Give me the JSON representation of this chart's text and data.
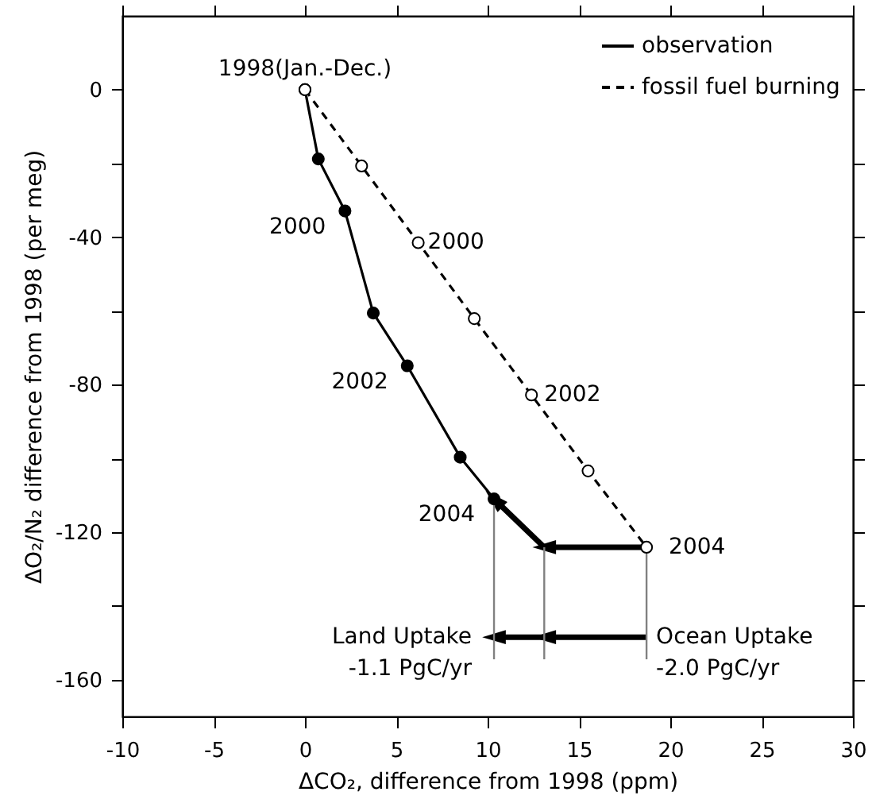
{
  "chart_data": {
    "type": "line",
    "xlabel": "ΔCO₂, difference from 1998 (ppm)",
    "ylabel": "ΔO₂/N₂ difference from 1998 (per meg)",
    "xlim": [
      -10,
      30
    ],
    "xticks": [
      -10,
      -5,
      0,
      5,
      10,
      15,
      20,
      25,
      30
    ],
    "ylim": [
      -170,
      20
    ],
    "yticks": [
      {
        "value": -160,
        "label": "-160"
      },
      {
        "value": -140,
        "label": null
      },
      {
        "value": -120,
        "label": "-120"
      },
      {
        "value": -100,
        "label": null
      },
      {
        "value": -80,
        "label": "-80"
      },
      {
        "value": -60,
        "label": null
      },
      {
        "value": -40,
        "label": "-40"
      },
      {
        "value": -20,
        "label": null
      },
      {
        "value": 0,
        "label": "0"
      }
    ],
    "grid": false,
    "legend": "top right",
    "series": [
      {
        "name": "observation",
        "color": "#000000",
        "line_style": "solid",
        "marker": "circle",
        "x": [
          0,
          0.73,
          2.19,
          3.74,
          5.6,
          8.5,
          10.35
        ],
        "values": [
          0,
          -18.8,
          -32.9,
          -60.6,
          -74.9,
          -99.7,
          -111.0
        ]
      },
      {
        "name": "fossil fuel burning",
        "color": "#000000",
        "line_style": "dashed",
        "marker": "circle",
        "x": [
          0,
          3.1,
          6.2,
          9.27,
          12.4,
          15.5,
          18.7
        ],
        "values": [
          0,
          -20.7,
          -41.5,
          -62.1,
          -82.8,
          -103.4,
          -124.1
        ]
      },
      {
        "color": "#000000",
        "line_style": "solid",
        "marker": "triangle",
        "x": [
          18.7,
          13.1
        ],
        "values": [
          -124.1,
          -124.1
        ]
      },
      {
        "color": "#000000",
        "line_style": "solid",
        "marker": "triangle",
        "x": [
          13.1,
          10.35
        ],
        "values": [
          -124.1,
          -111.0
        ]
      },
      {
        "color": "#000000",
        "line_style": "solid",
        "marker": "triangle",
        "x": [
          18.7,
          13.1
        ],
        "values": [
          -148.5,
          -148.5
        ]
      },
      {
        "color": "#000000",
        "line_style": "solid",
        "marker": "triangle",
        "x": [
          13.1,
          10.35
        ],
        "values": [
          -148.5,
          -148.5
        ]
      },
      {
        "color": "#808080",
        "line_style": "solid",
        "marker": "none",
        "x": [
          10.35,
          10.35
        ],
        "values": [
          -111.0,
          -154.5
        ]
      },
      {
        "color": "#808080",
        "line_style": "solid",
        "marker": "none",
        "x": [
          13.1,
          13.1
        ],
        "values": [
          -124.1,
          -154.5
        ]
      },
      {
        "color": "#808080",
        "line_style": "solid",
        "marker": "none",
        "x": [
          18.7,
          18.7
        ],
        "values": [
          -124.1,
          -154.5
        ]
      }
    ],
    "annotations": [
      {
        "text": "1998(Jan.-Dec.)",
        "x": 0,
        "y": 0
      },
      {
        "text": "2000",
        "x": 2.19,
        "y": -32.9
      },
      {
        "text": "2002",
        "x": 5.6,
        "y": -74.9
      },
      {
        "text": "2004",
        "x": 10.35,
        "y": -111.0
      },
      {
        "text": "2000",
        "x": 6.2,
        "y": -41.5
      },
      {
        "text": "2002",
        "x": 12.4,
        "y": -82.8
      },
      {
        "text": "2004",
        "x": 18.7,
        "y": -124.1
      },
      {
        "text": "Land Uptake\n-1.1 PgC/yr",
        "x": 10.35,
        "y": -148.5
      },
      {
        "text": "Ocean Uptake\n-2.0 PgC/yr",
        "x": 18.7,
        "y": -148.5
      }
    ]
  }
}
